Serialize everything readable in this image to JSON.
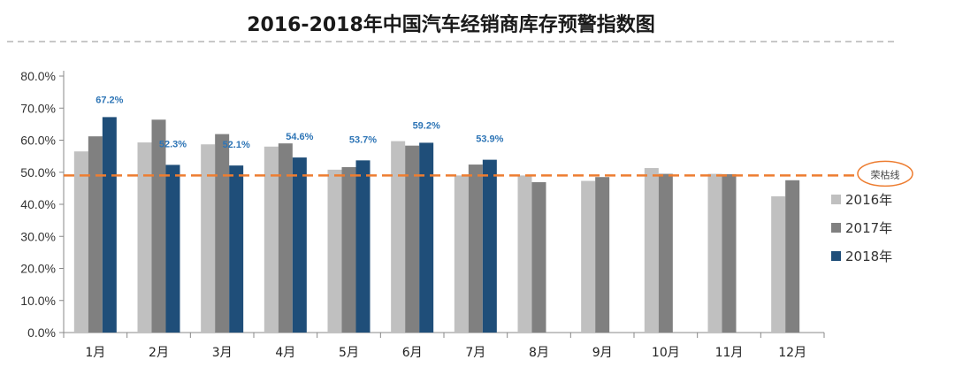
{
  "chart_data": {
    "type": "bar",
    "title": "2016-2018年中国汽车经销商库存预警指数图",
    "categories": [
      "1月",
      "2月",
      "3月",
      "4月",
      "5月",
      "6月",
      "7月",
      "8月",
      "9月",
      "10月",
      "11月",
      "12月"
    ],
    "series": [
      {
        "name": "2016年",
        "color": "#c0c0c0",
        "values": [
          56.5,
          59.3,
          58.7,
          58.0,
          50.8,
          59.7,
          49.0,
          49.0,
          47.3,
          51.3,
          49.5,
          42.5
        ]
      },
      {
        "name": "2017年",
        "color": "#808080",
        "values": [
          61.2,
          66.4,
          61.9,
          59.0,
          51.6,
          58.3,
          52.4,
          46.9,
          48.5,
          49.5,
          49.4,
          47.5
        ]
      },
      {
        "name": "2018年",
        "color": "#1f4e79",
        "values": [
          67.2,
          52.3,
          52.1,
          54.6,
          53.7,
          59.2,
          53.9,
          null,
          null,
          null,
          null,
          null
        ]
      }
    ],
    "data_labels": {
      "series": "2018年",
      "labels": [
        "67.2%",
        "52.3%",
        "52.1%",
        "54.6%",
        "53.7%",
        "59.2%",
        "53.9%"
      ]
    },
    "y_ticks": [
      "0.0%",
      "10.0%",
      "20.0%",
      "30.0%",
      "40.0%",
      "50.0%",
      "60.0%",
      "70.0%",
      "80.0%"
    ],
    "ylim": [
      0,
      80
    ],
    "grid": false,
    "reference_line": {
      "value": 49,
      "label": "荣枯线",
      "color": "#ed7d31"
    },
    "legend_position": "right",
    "xlabel": "",
    "ylabel": ""
  }
}
